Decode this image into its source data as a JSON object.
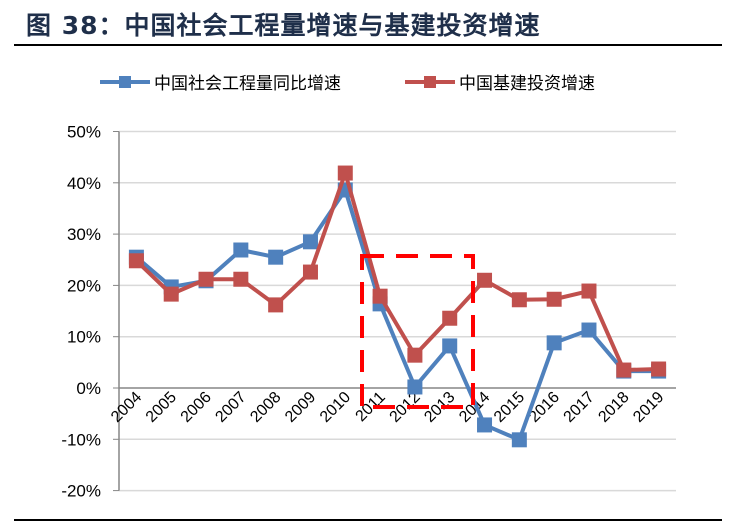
{
  "header": {
    "title": "图 38：中国社会工程量增速与基建投资增速"
  },
  "colors": {
    "series1": "#4f81bd",
    "series2": "#c0504d",
    "highlight_box": "#ff0000",
    "grid": "#d9d9d9",
    "axis": "#868686"
  },
  "chart_data": {
    "type": "line",
    "title": "图 38：中国社会工程量增速与基建投资增速",
    "xlabel": "",
    "ylabel": "",
    "categories": [
      "2004",
      "2005",
      "2006",
      "2007",
      "2008",
      "2009",
      "2010",
      "2011",
      "2012",
      "2013",
      "2014",
      "2015",
      "2016",
      "2017",
      "2018",
      "2019"
    ],
    "series": [
      {
        "name": "中国社会工程量同比增速",
        "color": "#4f81bd",
        "values": [
          25.5,
          19.7,
          20.9,
          26.9,
          25.5,
          28.5,
          38.6,
          16.4,
          0.2,
          8.2,
          -7.2,
          -10.1,
          8.8,
          11.3,
          3.3,
          3.3
        ]
      },
      {
        "name": "中国基建投资增速",
        "color": "#c0504d",
        "values": [
          24.8,
          18.3,
          21.2,
          21.2,
          16.2,
          22.6,
          41.9,
          17.9,
          6.4,
          13.6,
          21.0,
          17.2,
          17.3,
          18.9,
          3.5,
          3.7
        ]
      }
    ],
    "yticks": [
      "50%",
      "40%",
      "30%",
      "20%",
      "10%",
      "0%",
      "-10%",
      "-20%"
    ],
    "ylim": [
      -20,
      50
    ],
    "grid": true,
    "legend_position": "top",
    "annotations": [
      {
        "type": "dashed-rectangle",
        "color": "#ff0000",
        "x_range": [
          "2011",
          "2013"
        ],
        "y_range": [
          -4,
          26
        ]
      }
    ]
  }
}
